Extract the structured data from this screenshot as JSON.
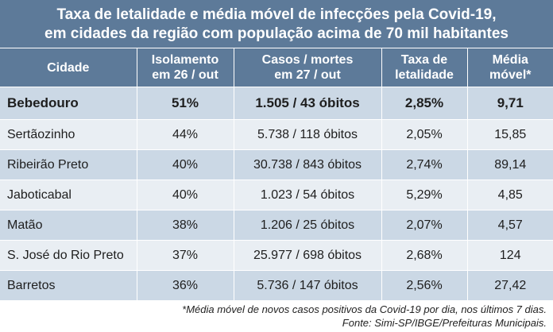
{
  "title": {
    "line1": "Taxa de letalidade e média móvel de infecções pela Covid-19,",
    "line2": "em cidades da região com população acima de 70 mil habitantes"
  },
  "headers": [
    {
      "l1": "Cidade",
      "l2": ""
    },
    {
      "l1": "Isolamento",
      "l2": "em 26 / out"
    },
    {
      "l1": "Casos / mortes",
      "l2": "em 27 / out"
    },
    {
      "l1": "Taxa de",
      "l2": "letalidade"
    },
    {
      "l1": "Média",
      "l2": "móvel*"
    }
  ],
  "rows": [
    {
      "cidade": "Bebedouro",
      "isolamento": "51%",
      "casos": "1.505 / 43 óbitos",
      "taxa": "2,85%",
      "media": "9,71"
    },
    {
      "cidade": "Sertãozinho",
      "isolamento": "44%",
      "casos": "5.738 / 118 óbitos",
      "taxa": "2,05%",
      "media": "15,85"
    },
    {
      "cidade": "Ribeirão Preto",
      "isolamento": "40%",
      "casos": "30.738 / 843 óbitos",
      "taxa": "2,74%",
      "media": "89,14"
    },
    {
      "cidade": "Jaboticabal",
      "isolamento": "40%",
      "casos": "1.023 / 54 óbitos",
      "taxa": "5,29%",
      "media": "4,85"
    },
    {
      "cidade": "Matão",
      "isolamento": "38%",
      "casos": "1.206 / 25 óbitos",
      "taxa": "2,07%",
      "media": "4,57"
    },
    {
      "cidade": "S. José do Rio Preto",
      "isolamento": "37%",
      "casos": "25.977 / 698 óbitos",
      "taxa": "2,68%",
      "media": "124"
    },
    {
      "cidade": "Barretos",
      "isolamento": "36%",
      "casos": "5.736 / 147 óbitos",
      "taxa": "2,56%",
      "media": "27,42"
    }
  ],
  "footnote": "*Média móvel de novos casos positivos da Covid-19 por dia, nos últimos 7 dias.",
  "source": "Fonte: Simi-SP/IBGE/Prefeituras Municipais.",
  "colors": {
    "header_bg": "#5d7a99",
    "row_dark": "#cbd8e5",
    "row_light": "#e9eef3"
  }
}
